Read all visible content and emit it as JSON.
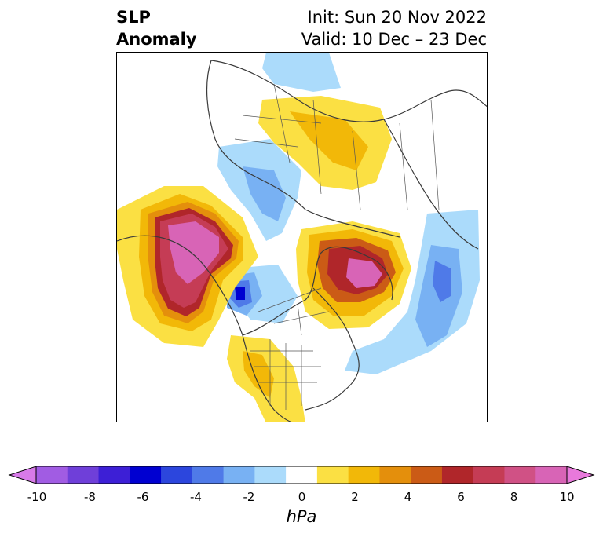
{
  "header": {
    "title_line1": "SLP",
    "title_line2": "Anomaly",
    "init_text": "Init: Sun 20 Nov 2022",
    "valid_text": "Valid: 10 Dec – 23 Dec"
  },
  "colorbar": {
    "unit": "hPa",
    "tick_labels": [
      "-10",
      "-8",
      "-6",
      "-4",
      "-2",
      "0",
      "2",
      "4",
      "6",
      "8",
      "10"
    ],
    "colors": [
      "#a15ce3",
      "#6f3fd9",
      "#3d1fd6",
      "#0000d1",
      "#2c46dd",
      "#4f7ae8",
      "#78b1f3",
      "#abdbfb",
      "#ffffff",
      "#fbe043",
      "#f2b808",
      "#e48f0c",
      "#cb5b16",
      "#b0262a",
      "#c53c55",
      "#d05185",
      "#d864b6"
    ],
    "extend_low_color": "#d77ae8",
    "extend_high_color": "#e879db"
  }
}
